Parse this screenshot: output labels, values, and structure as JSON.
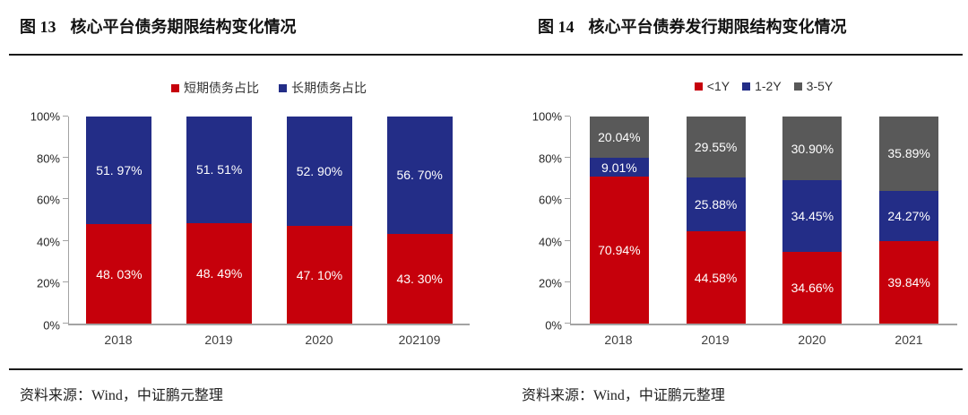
{
  "chart_data": [
    {
      "type": "bar",
      "stacked": true,
      "caption_num": "图 13",
      "caption_title": "核心平台债务期限结构变化情况",
      "source": "资料来源：Wind，中证鹏元整理",
      "categories": [
        "2018",
        "2019",
        "2020",
        "202109"
      ],
      "series": [
        {
          "name": "短期债务占比",
          "color": "#C6000B",
          "values": [
            48.03,
            48.49,
            47.1,
            43.3
          ],
          "labels": [
            "48. 03%",
            "48. 49%",
            "47. 10%",
            "43. 30%"
          ]
        },
        {
          "name": "长期债务占比",
          "color": "#232D87",
          "values": [
            51.97,
            51.51,
            52.9,
            56.7
          ],
          "labels": [
            "51. 97%",
            "51. 51%",
            "52. 90%",
            "56. 70%"
          ]
        }
      ],
      "xlabel": "",
      "ylabel": "",
      "ylim": [
        0,
        100
      ],
      "yticks": [
        "0%",
        "20%",
        "40%",
        "60%",
        "80%",
        "100%"
      ],
      "legend_position": "top",
      "grid": false
    },
    {
      "type": "bar",
      "stacked": true,
      "caption_num": "图 14",
      "caption_title": "核心平台债券发行期限结构变化情况",
      "source": "资料来源：Wind，中证鹏元整理",
      "categories": [
        "2018",
        "2019",
        "2020",
        "2021"
      ],
      "series": [
        {
          "name": "<1Y",
          "color": "#C6000B",
          "values": [
            70.94,
            44.58,
            34.66,
            39.84
          ],
          "labels": [
            "70.94%",
            "44.58%",
            "34.66%",
            "39.84%"
          ]
        },
        {
          "name": "1-2Y",
          "color": "#232D87",
          "values": [
            9.01,
            25.88,
            34.45,
            24.27
          ],
          "labels": [
            "9.01%",
            "25.88%",
            "34.45%",
            "24.27%"
          ]
        },
        {
          "name": "3-5Y",
          "color": "#595959",
          "values": [
            20.04,
            29.55,
            30.9,
            35.89
          ],
          "labels": [
            "20.04%",
            "29.55%",
            "30.90%",
            "35.89%"
          ]
        }
      ],
      "xlabel": "",
      "ylabel": "",
      "ylim": [
        0,
        100
      ],
      "yticks": [
        "0%",
        "20%",
        "40%",
        "60%",
        "80%",
        "100%"
      ],
      "legend_position": "top",
      "grid": false
    }
  ]
}
